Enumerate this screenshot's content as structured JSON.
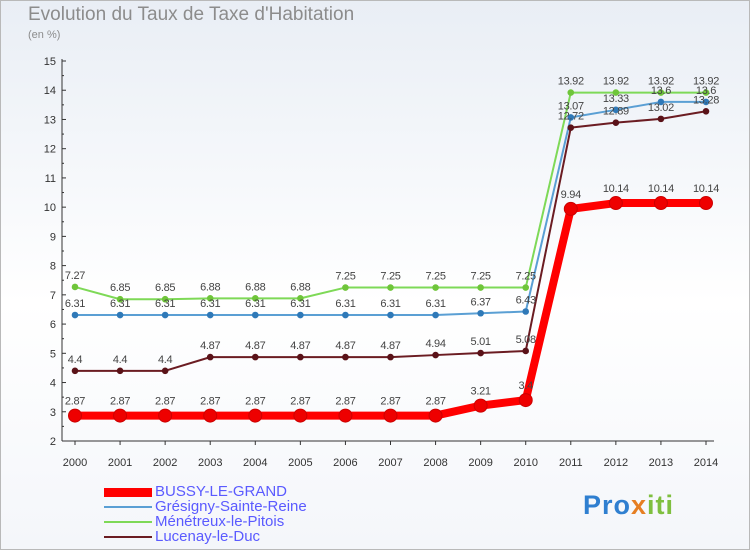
{
  "header": {
    "title": "Evolution du Taux de Taxe d'Habitation",
    "unit": "(en %)"
  },
  "brand": {
    "part1": "Pro",
    "part2": "x",
    "part3": "iti"
  },
  "chart_data": {
    "type": "line",
    "title": "Evolution du Taux de Taxe d'Habitation",
    "ylabel": "(en %)",
    "xlabel": "",
    "ylim": [
      2,
      15
    ],
    "yticks": [
      2,
      3,
      4,
      5,
      6,
      7,
      8,
      9,
      10,
      11,
      12,
      13,
      14,
      15
    ],
    "x": [
      "2000",
      "2001",
      "2002",
      "2003",
      "2004",
      "2005",
      "2006",
      "2007",
      "2008",
      "2009",
      "2010",
      "2011",
      "2012",
      "2013",
      "2014"
    ],
    "legend_position": "bottom-left",
    "grid": false,
    "series": [
      {
        "name": "Ménétreux-le-Pitois",
        "color": "#7ed957",
        "marker": "#6fc53a",
        "width": 2,
        "values": [
          7.27,
          6.85,
          6.85,
          6.88,
          6.88,
          6.88,
          7.25,
          7.25,
          7.25,
          7.25,
          7.25,
          13.92,
          13.92,
          13.92,
          13.92
        ],
        "labels": [
          "7.27",
          "6.85",
          "6.85",
          "6.88",
          "6.88",
          "6.88",
          "7.25",
          "7.25",
          "7.25",
          "7.25",
          "7.25",
          "13.92",
          "13.92",
          "13.92",
          "13.92"
        ]
      },
      {
        "name": "Grésigny-Sainte-Reine",
        "color": "#5a9fd4",
        "marker": "#2f79b8",
        "width": 2,
        "values": [
          6.31,
          6.31,
          6.31,
          6.31,
          6.31,
          6.31,
          6.31,
          6.31,
          6.31,
          6.37,
          6.43,
          13.07,
          13.33,
          13.6,
          13.6
        ],
        "labels": [
          "6.31",
          "6.31",
          "6.31",
          "6.31",
          "6.31",
          "6.31",
          "6.31",
          "6.31",
          "6.31",
          "6.37",
          "6.43",
          "13.07",
          "13.33",
          "13.6",
          "13.6"
        ]
      },
      {
        "name": "Lucenay-le-Duc",
        "color": "#6b1c22",
        "marker": "#5a1218",
        "width": 2,
        "values": [
          4.4,
          4.4,
          4.4,
          4.87,
          4.87,
          4.87,
          4.87,
          4.87,
          4.94,
          5.01,
          5.08,
          12.72,
          12.89,
          13.02,
          13.28
        ],
        "labels": [
          "4.4",
          "4.4",
          "4.4",
          "4.87",
          "4.87",
          "4.87",
          "4.87",
          "4.87",
          "4.94",
          "5.01",
          "5.08",
          "12.72",
          "12.89",
          "13.02",
          "13.28"
        ]
      },
      {
        "name": "BUSSY-LE-GRAND",
        "color": "#ff0000",
        "marker": "#ee0000",
        "width": 8,
        "values": [
          2.87,
          2.87,
          2.87,
          2.87,
          2.87,
          2.87,
          2.87,
          2.87,
          2.87,
          3.21,
          3.4,
          9.94,
          10.14,
          10.14,
          10.14
        ],
        "labels": [
          "2.87",
          "2.87",
          "2.87",
          "2.87",
          "2.87",
          "2.87",
          "2.87",
          "2.87",
          "2.87",
          "3.21",
          "3.4",
          "9.94",
          "10.14",
          "10.14",
          "10.14"
        ]
      }
    ],
    "legend": [
      {
        "name": "BUSSY-LE-GRAND",
        "color": "#ff0000",
        "text_color": "#5a5aff"
      },
      {
        "name": "Grésigny-Sainte-Reine",
        "color": "#5a9fd4",
        "text_color": "#5a5aff"
      },
      {
        "name": "Ménétreux-le-Pitois",
        "color": "#7ed957",
        "text_color": "#5a5aff"
      },
      {
        "name": "Lucenay-le-Duc",
        "color": "#6b1c22",
        "text_color": "#5a5aff"
      }
    ]
  }
}
